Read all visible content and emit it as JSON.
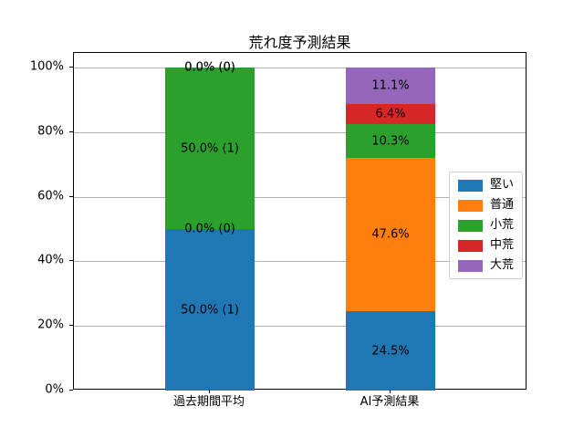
{
  "chart_data": {
    "type": "bar",
    "stacked": true,
    "orientation": "vertical",
    "title": "荒れ度予測結果",
    "categories": [
      "過去期間平均",
      "AI予測結果"
    ],
    "series": [
      {
        "name": "堅い",
        "color": "#1f77b4",
        "values": [
          50.0,
          24.5
        ]
      },
      {
        "name": "普通",
        "color": "#ff7f0e",
        "values": [
          0.0,
          47.6
        ]
      },
      {
        "name": "小荒",
        "color": "#2ca02c",
        "values": [
          50.0,
          10.3
        ]
      },
      {
        "name": "中荒",
        "color": "#d62728",
        "values": [
          0.0,
          6.4
        ]
      },
      {
        "name": "大荒",
        "color": "#9467bd",
        "values": [
          0.0,
          11.1
        ]
      }
    ],
    "bar_labels": [
      [
        "50.0% (1)",
        "0.0% (0)",
        "50.0% (1)",
        "0.0% (0)",
        "0.0% (0)"
      ],
      [
        "24.5%",
        "47.6%",
        "10.3%",
        "6.4%",
        "11.1%"
      ]
    ],
    "yticks": {
      "values": [
        0,
        20,
        40,
        60,
        80,
        100
      ],
      "labels": [
        "0%",
        "20%",
        "40%",
        "60%",
        "80%",
        "100%"
      ]
    },
    "ylim": [
      0,
      104.5
    ],
    "xlabel": "",
    "ylabel": "",
    "grid": "horizontal",
    "legend_position": "center-right"
  },
  "style": {
    "background": "#ffffff",
    "grid_color": "#b0b0b0",
    "spine_color": "#000000",
    "text_color": "#000000",
    "legend_border_color": "#cccccc",
    "legend_background": "rgba(255,255,255,0.9)"
  }
}
